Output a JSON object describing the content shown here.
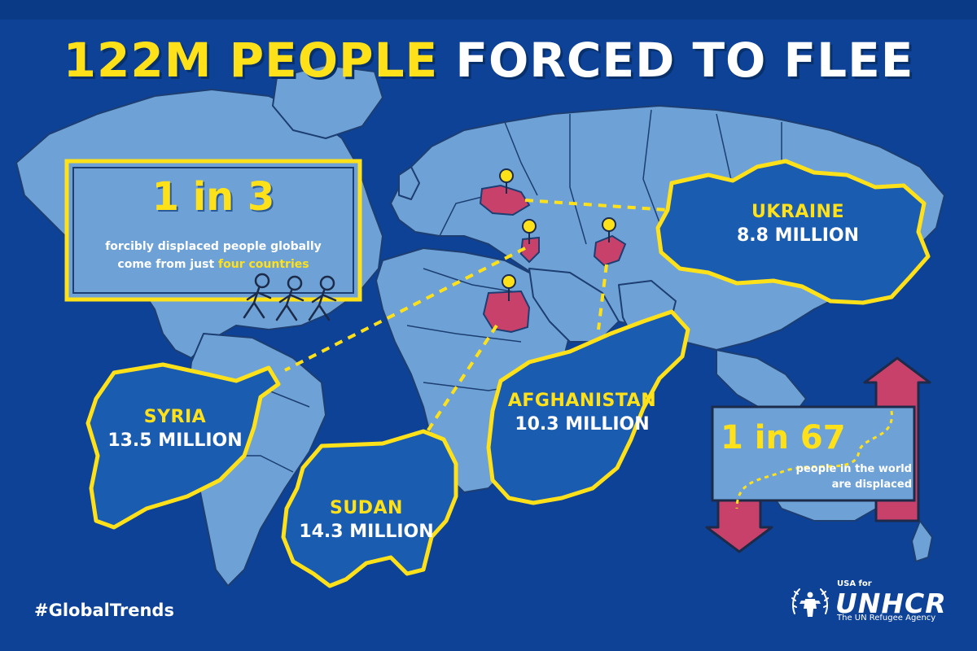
{
  "title": {
    "highlight": "122M PEOPLE",
    "rest": "FORCED TO FLEE"
  },
  "stat_one": {
    "big": "1 in 3",
    "line1": "forcibly displaced people globally",
    "line2_prefix": "come from just",
    "line2_highlight": "four countries"
  },
  "stat_two": {
    "big": "1 in 67",
    "line1": "people in the world",
    "line2": "are displaced"
  },
  "countries": {
    "ukraine": {
      "name": "UKRAINE",
      "value": "8.8 MILLION"
    },
    "syria": {
      "name": "SYRIA",
      "value": "13.5 MILLION"
    },
    "sudan": {
      "name": "SUDAN",
      "value": "14.3 MILLION"
    },
    "afghanistan": {
      "name": "AFGHANISTAN",
      "value": "10.3 MILLION"
    }
  },
  "hashtag": "#GlobalTrends",
  "logo": {
    "prefix": "USA for",
    "name": "UNHCR",
    "tagline": "The UN Refugee Agency"
  },
  "colors": {
    "background": "#0e4296",
    "land": "#6ea2d6",
    "highlight_country": "#c7416b",
    "callout_fill": "#1a5cb0",
    "accent_yellow": "#ffe11a"
  }
}
